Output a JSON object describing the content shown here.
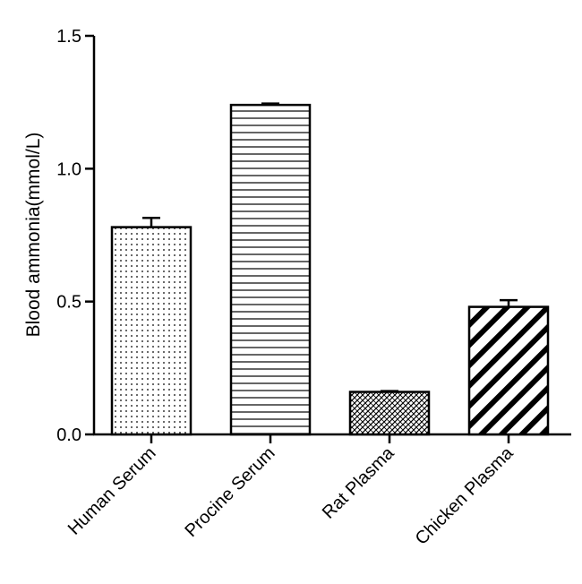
{
  "chart_data": {
    "type": "bar",
    "categories": [
      "Human Serum",
      "Procine Serum",
      "Rat Plasma",
      "Chicken Plasma"
    ],
    "values": [
      0.78,
      1.24,
      0.16,
      0.48
    ],
    "error_upper": [
      0.035,
      0.005,
      0.003,
      0.025
    ],
    "patterns": [
      "dots",
      "horizontal-lines",
      "crosshatch",
      "diagonal-stripes"
    ],
    "title": "",
    "xlabel": "",
    "ylabel": "Blood ammonia(mmol/L)",
    "ylim": [
      0,
      1.5
    ],
    "yticks": [
      "0.0",
      "0.5",
      "1.0",
      "1.5"
    ],
    "grid": false,
    "bar_stroke_color": "#000000",
    "background_color": "#ffffff"
  }
}
